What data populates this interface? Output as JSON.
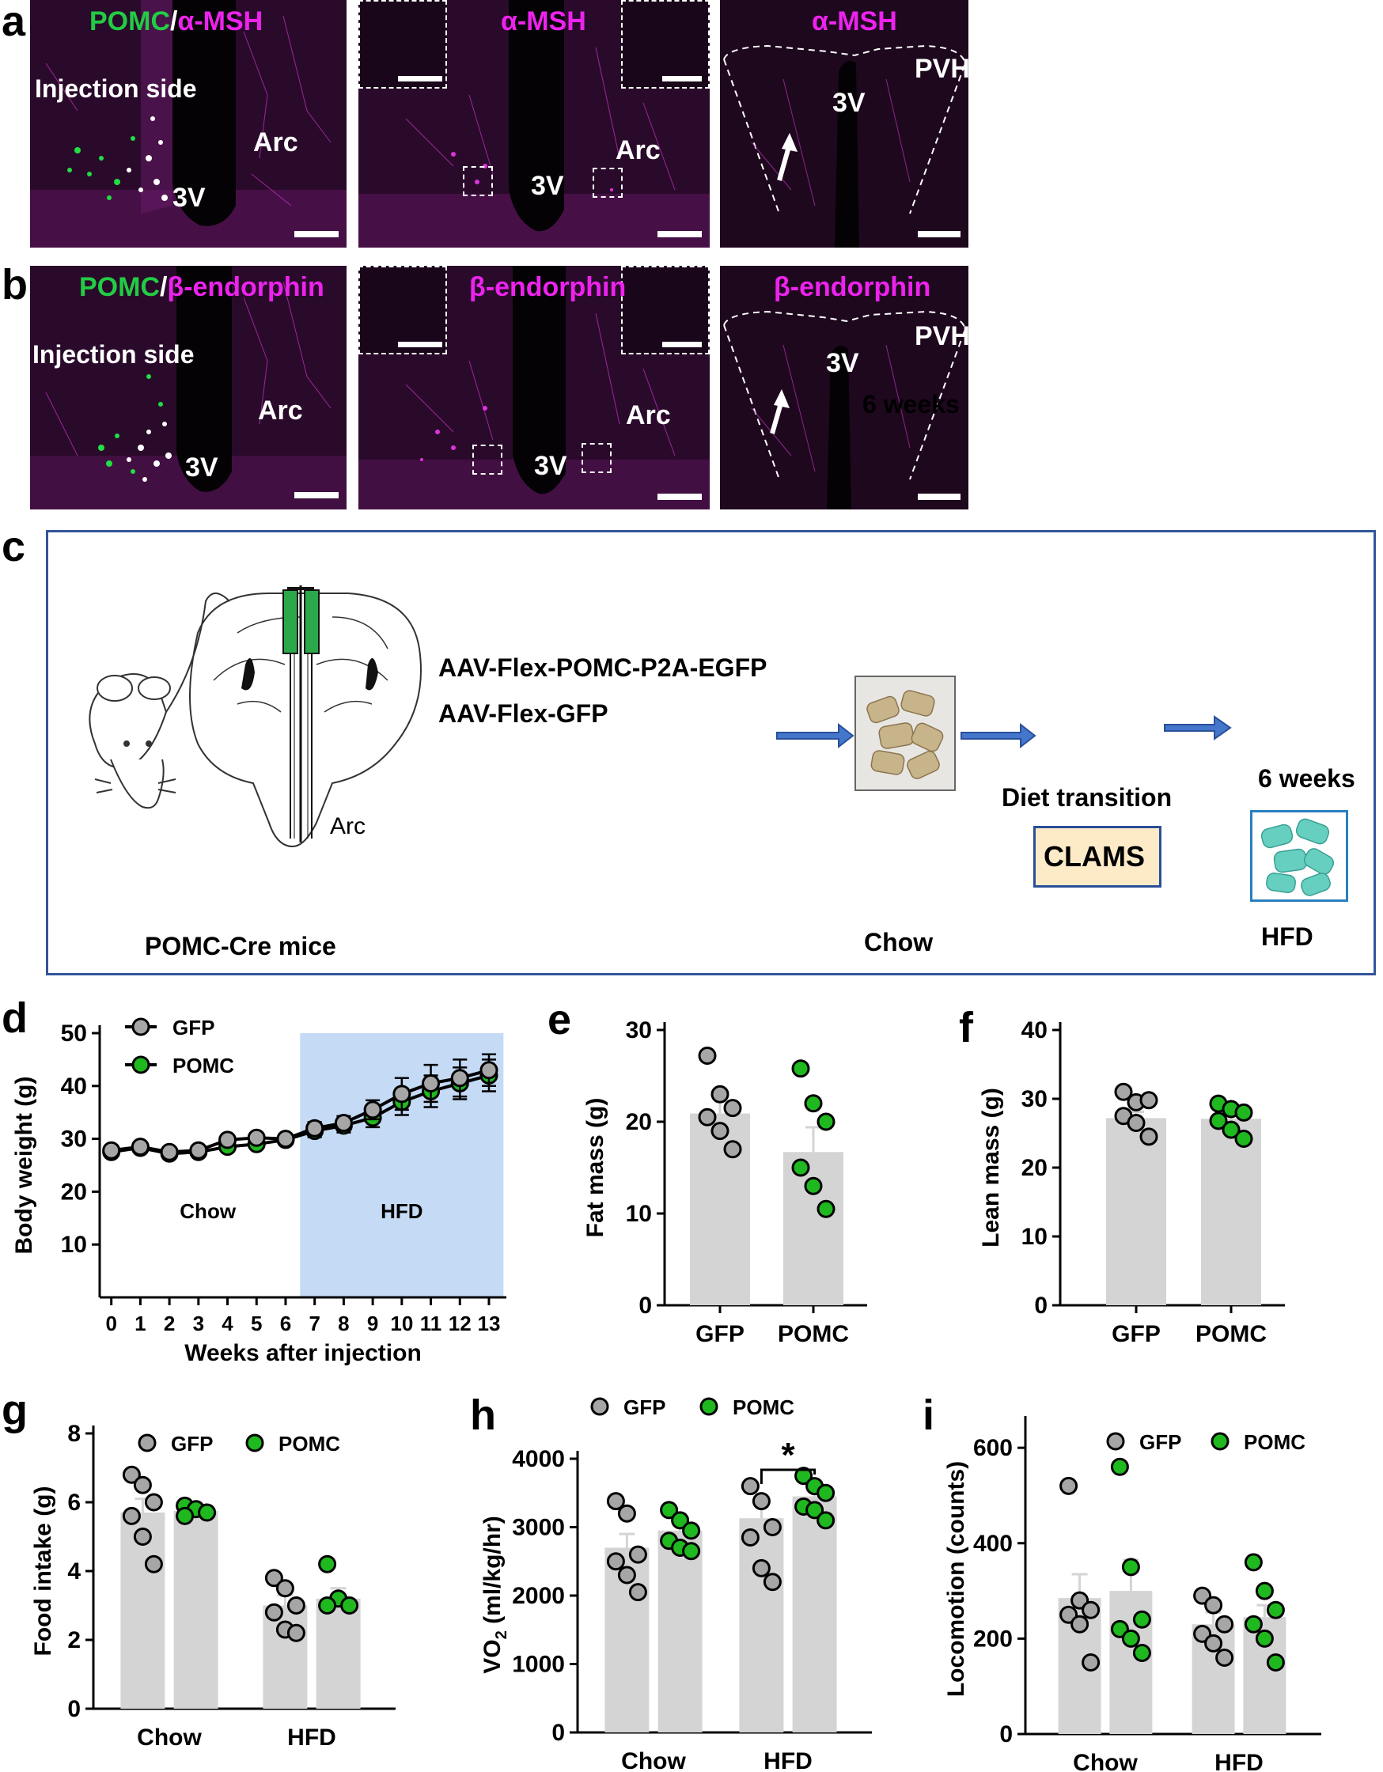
{
  "panels": {
    "a": {
      "letter": "a",
      "img1": {
        "title_green": "POMC",
        "title_sep": "/",
        "title_magenta": "α-MSH",
        "injection": "Injection side",
        "arc": "Arc",
        "v3": "3V"
      },
      "img2": {
        "title": "α-MSH",
        "arc": "Arc",
        "v3": "3V"
      },
      "img3": {
        "title": "α-MSH",
        "pvh": "PVH",
        "v3": "3V"
      }
    },
    "b": {
      "letter": "b",
      "img1": {
        "title_green": "POMC",
        "title_sep": "/",
        "title_magenta": "β-endorphin",
        "injection": "Injection side",
        "arc": "Arc",
        "v3": "3V"
      },
      "img2": {
        "title": "β-endorphin",
        "arc": "Arc",
        "v3": "3V"
      },
      "img3": {
        "title": "β-endorphin",
        "pvh": "PVH",
        "v3": "3V"
      }
    },
    "c": {
      "letter": "c",
      "mouse_label": "POMC-Cre mice",
      "arc_label": "Arc",
      "virus1": "AAV-Flex-POMC-P2A-EGFP",
      "virus2": "AAV-Flex-GFP",
      "weeks1": "6 weeks",
      "chow": "Chow",
      "transition": "Diet transition",
      "clams": "CLAMS",
      "weeks2": "6 weeks",
      "hfd": "HFD"
    },
    "d": {
      "letter": "d"
    },
    "e": {
      "letter": "e"
    },
    "f": {
      "letter": "f"
    },
    "g": {
      "letter": "g"
    },
    "h": {
      "letter": "h"
    },
    "i": {
      "letter": "i"
    }
  },
  "colors": {
    "gfp": "#a6a6a6",
    "pomc": "#1fb81f",
    "bar": "#d4d4d4",
    "hfd_shade": "#c5daf5",
    "magenta": "#ee22ee"
  },
  "chart_data": [
    {
      "panel": "d",
      "type": "line",
      "xlabel": "Weeks after injection",
      "ylabel": "Body weight (g)",
      "x": [
        0,
        1,
        2,
        3,
        4,
        5,
        6,
        7,
        8,
        9,
        10,
        11,
        12,
        13
      ],
      "xticks": [
        "0",
        "1",
        "2",
        "3",
        "4",
        "5",
        "6",
        "7",
        "8",
        "9",
        "10",
        "11",
        "12",
        "13"
      ],
      "yticks": [
        "10",
        "20",
        "30",
        "40",
        "50"
      ],
      "ylim": [
        0,
        50
      ],
      "shaded_region": {
        "from": 6.5,
        "to": 13.5,
        "label": "HFD"
      },
      "unshaded_label": "Chow",
      "series": [
        {
          "name": "GFP",
          "values": [
            27.8,
            28.5,
            27.5,
            27.8,
            29.8,
            30.2,
            30.0,
            32.0,
            33.0,
            35.5,
            38.5,
            40.5,
            41.5,
            43.0
          ],
          "errors": [
            0.8,
            0.8,
            0.8,
            0.8,
            0.9,
            0.9,
            0.9,
            1.2,
            1.3,
            1.8,
            3.0,
            3.5,
            3.5,
            3.0
          ]
        },
        {
          "name": "POMC",
          "values": [
            27.5,
            28.3,
            27.2,
            27.5,
            28.5,
            29.0,
            29.8,
            31.5,
            32.5,
            34.0,
            37.0,
            39.0,
            40.5,
            42.0
          ],
          "errors": [
            0.8,
            0.8,
            0.8,
            0.8,
            0.9,
            0.9,
            0.9,
            1.2,
            1.3,
            1.8,
            2.5,
            3.0,
            3.0,
            3.0
          ]
        }
      ]
    },
    {
      "panel": "e",
      "type": "bar",
      "ylabel": "Fat mass (g)",
      "categories": [
        "GFP",
        "POMC"
      ],
      "yticks": [
        "0",
        "10",
        "20",
        "30"
      ],
      "ylim": [
        0,
        30
      ],
      "values": [
        20.9,
        16.7
      ],
      "errors": [
        1.8,
        2.7
      ],
      "points": [
        [
          27.2,
          23.0,
          21.5,
          20.5,
          19.0,
          17.0
        ],
        [
          25.8,
          22.0,
          20.0,
          15.0,
          13.0,
          10.5
        ]
      ]
    },
    {
      "panel": "f",
      "type": "bar",
      "ylabel": "Lean mass (g)",
      "categories": [
        "GFP",
        "POMC"
      ],
      "yticks": [
        "0",
        "10",
        "20",
        "30",
        "40"
      ],
      "ylim": [
        0,
        40
      ],
      "values": [
        27.2,
        27.1
      ],
      "errors": [
        0.9,
        0.8
      ],
      "points": [
        [
          31.0,
          29.5,
          29.8,
          27.5,
          26.5,
          24.5
        ],
        [
          29.3,
          28.5,
          28.0,
          26.8,
          25.5,
          24.2
        ]
      ]
    },
    {
      "panel": "g",
      "type": "bar",
      "ylabel": "Food intake (g)",
      "categories": [
        "Chow",
        "HFD"
      ],
      "yticks": [
        "0",
        "2",
        "4",
        "6",
        "8"
      ],
      "ylim": [
        0,
        8
      ],
      "series": [
        {
          "name": "GFP",
          "values": [
            5.7,
            3.0
          ],
          "errors": [
            0.4,
            0.3
          ],
          "points": [
            [
              6.8,
              6.5,
              6.0,
              5.6,
              5.0,
              4.2
            ],
            [
              3.8,
              3.5,
              3.0,
              2.8,
              2.3,
              2.2
            ]
          ]
        },
        {
          "name": "POMC",
          "values": [
            5.75,
            3.2
          ],
          "errors": [
            0.15,
            0.3
          ],
          "points": [
            [
              5.9,
              5.8,
              5.7,
              5.6
            ],
            [
              4.2,
              3.2,
              3.0,
              3.0
            ]
          ]
        }
      ]
    },
    {
      "panel": "h",
      "type": "bar",
      "ylabel": "VO",
      "ylabel_sub": "2",
      "ylabel_unit": " (ml/kg/hr)",
      "categories": [
        "Chow",
        "HFD"
      ],
      "yticks": [
        "0",
        "1000",
        "2000",
        "3000",
        "4000"
      ],
      "ylim": [
        0,
        4000
      ],
      "significance": "*",
      "series": [
        {
          "name": "GFP",
          "values": [
            2700,
            3130
          ],
          "errors": [
            200,
            200
          ],
          "points": [
            [
              3380,
              3200,
              2600,
              2500,
              2300,
              2050
            ],
            [
              3600,
              3380,
              3000,
              2850,
              2400,
              2200
            ]
          ]
        },
        {
          "name": "POMC",
          "values": [
            2950,
            3450
          ],
          "errors": [
            100,
            80
          ],
          "points": [
            [
              3250,
              3100,
              2950,
              2800,
              2700,
              2650
            ],
            [
              3750,
              3600,
              3500,
              3300,
              3250,
              3100
            ]
          ]
        }
      ]
    },
    {
      "panel": "i",
      "type": "bar",
      "ylabel": "Locomotion (counts)",
      "categories": [
        "Chow",
        "HFD"
      ],
      "yticks": [
        "0",
        "200",
        "400",
        "600"
      ],
      "ylim": [
        0,
        650
      ],
      "series": [
        {
          "name": "GFP",
          "values": [
            285,
            230
          ],
          "errors": [
            50,
            25
          ],
          "points": [
            [
              520,
              280,
              260,
              250,
              230,
              150
            ],
            [
              290,
              270,
              230,
              210,
              190,
              160
            ]
          ]
        },
        {
          "name": "POMC",
          "values": [
            300,
            245
          ],
          "errors": [
            65,
            25
          ],
          "points": [
            [
              560,
              350,
              240,
              220,
              200,
              170
            ],
            [
              360,
              300,
              260,
              230,
              200,
              150
            ]
          ]
        }
      ]
    }
  ]
}
